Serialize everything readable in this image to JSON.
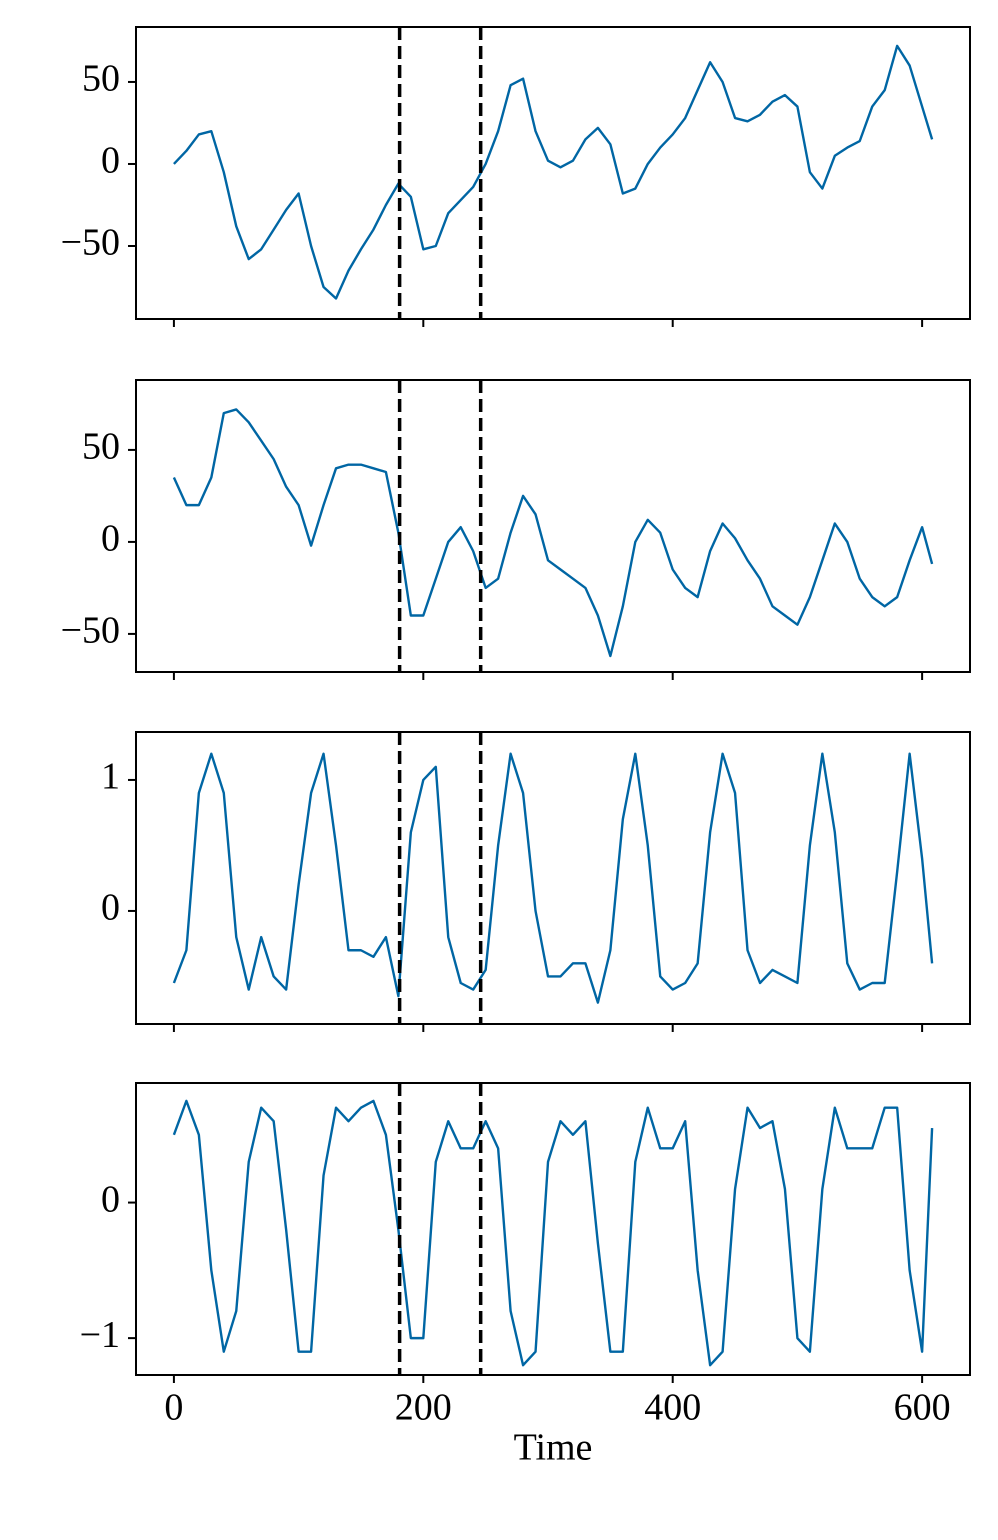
{
  "chart_data": [
    {
      "type": "line",
      "x": [
        0,
        10,
        20,
        30,
        40,
        50,
        60,
        70,
        80,
        90,
        100,
        110,
        120,
        130,
        140,
        150,
        160,
        170,
        180,
        190,
        200,
        210,
        220,
        230,
        240,
        250,
        260,
        270,
        280,
        290,
        300,
        310,
        320,
        330,
        340,
        350,
        360,
        370,
        380,
        390,
        400,
        410,
        420,
        430,
        440,
        450,
        460,
        470,
        480,
        490,
        500,
        510,
        520,
        530,
        540,
        550,
        560,
        570,
        580,
        590,
        600,
        608
      ],
      "series": [
        {
          "color": "#0066a4",
          "values": [
            0,
            8,
            18,
            20,
            -5,
            -38,
            -58,
            -52,
            -40,
            -28,
            -18,
            -50,
            -75,
            -82,
            -65,
            -52,
            -40,
            -25,
            -12,
            -20,
            -52,
            -50,
            -30,
            -22,
            -14,
            0,
            20,
            48,
            52,
            20,
            2,
            -2,
            2,
            15,
            22,
            12,
            -18,
            -15,
            0,
            10,
            18,
            28,
            45,
            62,
            50,
            28,
            26,
            30,
            38,
            42,
            35,
            -5,
            -15,
            5,
            10,
            14,
            35,
            45,
            72,
            60,
            35,
            15
          ]
        }
      ],
      "xlim": [
        -30.4,
        638.4
      ],
      "xticks": [
        0,
        200,
        400,
        600
      ],
      "ylim": [
        -94.5,
        83.5
      ],
      "yticks": [
        {
          "value": -50,
          "label": "−50"
        },
        0,
        50
      ],
      "vlines": [
        181,
        246
      ],
      "vline_color": "#000000",
      "vline_style": "dashed"
    },
    {
      "type": "line",
      "x": [
        0,
        10,
        20,
        30,
        40,
        50,
        60,
        70,
        80,
        90,
        100,
        110,
        120,
        130,
        140,
        150,
        160,
        170,
        180,
        190,
        200,
        210,
        220,
        230,
        240,
        250,
        260,
        270,
        280,
        290,
        300,
        310,
        320,
        330,
        340,
        350,
        360,
        370,
        380,
        390,
        400,
        410,
        420,
        430,
        440,
        450,
        460,
        470,
        480,
        490,
        500,
        510,
        520,
        530,
        540,
        550,
        560,
        570,
        580,
        590,
        600,
        608
      ],
      "series": [
        {
          "color": "#0066a4",
          "values": [
            35,
            20,
            20,
            35,
            70,
            72,
            65,
            55,
            45,
            30,
            20,
            -2,
            20,
            40,
            42,
            42,
            40,
            38,
            5,
            -40,
            -40,
            -20,
            0,
            8,
            -5,
            -25,
            -20,
            5,
            25,
            15,
            -10,
            -15,
            -20,
            -25,
            -40,
            -62,
            -35,
            0,
            12,
            5,
            -15,
            -25,
            -30,
            -5,
            10,
            2,
            -10,
            -20,
            -35,
            -40,
            -45,
            -30,
            -10,
            10,
            0,
            -20,
            -30,
            -35,
            -30,
            -10,
            8,
            -12
          ]
        }
      ],
      "xlim": [
        -30.4,
        638.4
      ],
      "xticks": [
        0,
        200,
        400,
        600
      ],
      "ylim": [
        -70.7,
        88
      ],
      "yticks": [
        {
          "value": -50,
          "label": "−50"
        },
        0,
        50
      ],
      "vlines": [
        181,
        246
      ],
      "vline_color": "#000000",
      "vline_style": "dashed"
    },
    {
      "type": "line",
      "x": [
        0,
        10,
        20,
        30,
        40,
        50,
        60,
        70,
        80,
        90,
        100,
        110,
        120,
        130,
        140,
        150,
        160,
        170,
        180,
        190,
        200,
        210,
        220,
        230,
        240,
        250,
        260,
        270,
        280,
        290,
        300,
        310,
        320,
        330,
        340,
        350,
        360,
        370,
        380,
        390,
        400,
        410,
        420,
        430,
        440,
        450,
        460,
        470,
        480,
        490,
        500,
        510,
        520,
        530,
        540,
        550,
        560,
        570,
        580,
        590,
        600,
        608
      ],
      "series": [
        {
          "color": "#0066a4",
          "values": [
            -0.55,
            -0.3,
            0.9,
            1.2,
            0.9,
            -0.2,
            -0.6,
            -0.2,
            -0.5,
            -0.6,
            0.2,
            0.9,
            1.2,
            0.5,
            -0.3,
            -0.3,
            -0.35,
            -0.2,
            -0.65,
            0.6,
            1.0,
            1.1,
            -0.2,
            -0.55,
            -0.6,
            -0.45,
            0.5,
            1.2,
            0.9,
            0.0,
            -0.5,
            -0.5,
            -0.4,
            -0.4,
            -0.7,
            -0.3,
            0.7,
            1.2,
            0.5,
            -0.5,
            -0.6,
            -0.55,
            -0.4,
            0.6,
            1.2,
            0.9,
            -0.3,
            -0.55,
            -0.45,
            -0.5,
            -0.55,
            0.5,
            1.2,
            0.6,
            -0.4,
            -0.6,
            -0.55,
            -0.55,
            0.3,
            1.2,
            0.4,
            -0.4
          ]
        }
      ],
      "xlim": [
        -30.4,
        638.4
      ],
      "xticks": [
        0,
        200,
        400,
        600
      ],
      "ylim": [
        -0.863,
        1.366
      ],
      "yticks": [
        0,
        1
      ],
      "vlines": [
        181,
        246
      ],
      "vline_color": "#000000",
      "vline_style": "dashed"
    },
    {
      "type": "line",
      "x": [
        0,
        10,
        20,
        30,
        40,
        50,
        60,
        70,
        80,
        90,
        100,
        110,
        120,
        130,
        140,
        150,
        160,
        170,
        180,
        190,
        200,
        210,
        220,
        230,
        240,
        250,
        260,
        270,
        280,
        290,
        300,
        310,
        320,
        330,
        340,
        350,
        360,
        370,
        380,
        390,
        400,
        410,
        420,
        430,
        440,
        450,
        460,
        470,
        480,
        490,
        500,
        510,
        520,
        530,
        540,
        550,
        560,
        570,
        580,
        590,
        600,
        608
      ],
      "series": [
        {
          "color": "#0066a4",
          "values": [
            0.5,
            0.75,
            0.5,
            -0.5,
            -1.1,
            -0.8,
            0.3,
            0.7,
            0.6,
            -0.2,
            -1.1,
            -1.1,
            0.2,
            0.7,
            0.6,
            0.7,
            0.75,
            0.5,
            -0.2,
            -1.0,
            -1.0,
            0.3,
            0.6,
            0.4,
            0.4,
            0.6,
            0.4,
            -0.8,
            -1.2,
            -1.1,
            0.3,
            0.6,
            0.5,
            0.6,
            -0.3,
            -1.1,
            -1.1,
            0.3,
            0.7,
            0.4,
            0.4,
            0.6,
            -0.5,
            -1.2,
            -1.1,
            0.1,
            0.7,
            0.55,
            0.6,
            0.1,
            -1.0,
            -1.1,
            0.1,
            0.7,
            0.4,
            0.4,
            0.4,
            0.7,
            0.7,
            -0.5,
            -1.1,
            0.55
          ]
        }
      ],
      "xlim": [
        -30.4,
        638.4
      ],
      "xticks": [
        0,
        200,
        400,
        600
      ],
      "xlabel": "Time",
      "ylim": [
        -1.272,
        0.882
      ],
      "yticks": [
        {
          "value": -1,
          "label": "−1"
        },
        0
      ],
      "vlines": [
        181,
        246
      ],
      "vline_color": "#000000",
      "vline_style": "dashed"
    }
  ]
}
